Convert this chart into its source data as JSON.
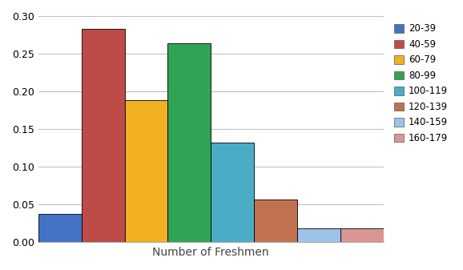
{
  "categories": [
    "20-39",
    "40-59",
    "60-79",
    "80-99",
    "100-119",
    "120-139",
    "140-159",
    "160-179"
  ],
  "values": [
    0.038,
    0.283,
    0.189,
    0.264,
    0.132,
    0.057,
    0.019,
    0.019
  ],
  "bar_colors": [
    "#4472C4",
    "#BE4B48",
    "#F0B022",
    "#31A354",
    "#4BACC6",
    "#C0714F",
    "#9DC3E6",
    "#D99694"
  ],
  "xlabel": "Number of Freshmen",
  "ylabel": "",
  "ylim": [
    0,
    0.3
  ],
  "yticks": [
    0,
    0.05,
    0.1,
    0.15,
    0.2,
    0.25,
    0.3
  ],
  "title": "",
  "background_color": "#ffffff",
  "grid_color": "#c0c0c0",
  "legend_labels": [
    "20-39",
    "40-59",
    "60-79",
    "80-99",
    "100-119",
    "120-139",
    "140-159",
    "160-179"
  ]
}
